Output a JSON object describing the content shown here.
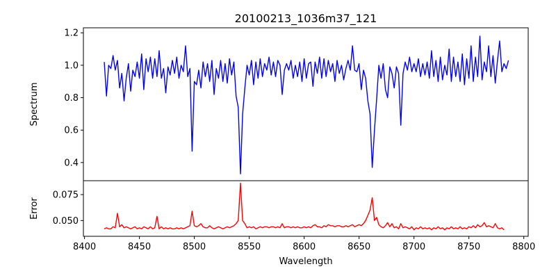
{
  "chart_data": [
    {
      "type": "line",
      "title": "20100213_1036m37_121",
      "xlabel": "",
      "ylabel": "Spectrum",
      "xlim": [
        8399,
        8804
      ],
      "ylim": [
        0.288,
        1.231
      ],
      "yticks": [
        "0.4",
        "0.6",
        "0.8",
        "1.0",
        "1.2"
      ],
      "grid": false,
      "series": [
        {
          "name": "Spectrum",
          "color": "#0000ff",
          "x_start": 8418,
          "x_step": 2,
          "values": [
            1.02,
            0.81,
            1.0,
            0.98,
            1.06,
            0.97,
            1.03,
            0.86,
            0.95,
            0.78,
            0.92,
            1.01,
            0.84,
            0.97,
            0.93,
            1.02,
            0.92,
            1.07,
            0.85,
            1.04,
            0.96,
            1.05,
            0.92,
            1.04,
            0.93,
            1.09,
            0.92,
            0.98,
            0.83,
            0.99,
            0.94,
            1.03,
            0.95,
            1.05,
            0.92,
            1.0,
            0.96,
            1.12,
            0.93,
            0.98,
            0.47,
            0.9,
            0.88,
            0.97,
            0.86,
            1.02,
            0.93,
            1.01,
            0.9,
            1.03,
            0.82,
            0.98,
            0.92,
            1.03,
            0.9,
            1.01,
            0.89,
            1.04,
            0.94,
            1.02,
            0.81,
            0.74,
            0.33,
            0.7,
            0.86,
            1.0,
            0.94,
            1.03,
            0.88,
            1.02,
            0.92,
            1.04,
            0.93,
            1.01,
            0.97,
            1.05,
            0.94,
            1.02,
            0.93,
            1.03,
            1.0,
            0.82,
            0.97,
            1.01,
            0.97,
            1.03,
            0.92,
            1.0,
            0.93,
            1.02,
            0.9,
            1.04,
            0.92,
            1.01,
            1.02,
            0.87,
            1.02,
            0.95,
            1.05,
            0.92,
            1.04,
            0.93,
            1.03,
            0.96,
            1.01,
            0.9,
            1.03,
            0.95,
            1.0,
            0.91,
            0.98,
            1.03,
            0.97,
            1.12,
            0.97,
            0.96,
            1.01,
            0.85,
            0.97,
            0.92,
            0.78,
            0.7,
            0.37,
            0.6,
            0.79,
            1.0,
            0.92,
            1.01,
            0.85,
            0.8,
            0.99,
            0.95,
            0.86,
            0.99,
            0.95,
            0.63,
            0.95,
            1.02,
            0.97,
            1.05,
            0.96,
            1.01,
            0.96,
            1.04,
            0.93,
            1.01,
            0.94,
            1.02,
            0.92,
            1.09,
            0.93,
            1.03,
            0.9,
            1.05,
            0.91,
            1.0,
            0.94,
            1.1,
            0.9,
            1.05,
            0.93,
            1.02,
            0.9,
            1.07,
            0.88,
            1.04,
            0.92,
            1.12,
            0.9,
            1.05,
            0.93,
            1.18,
            0.91,
            1.02,
            0.96,
            1.12,
            0.93,
            1.06,
            0.89,
            1.03,
            1.15,
            0.96,
            1.01,
            0.98,
            1.03
          ]
        }
      ]
    },
    {
      "type": "line",
      "title": "",
      "xlabel": "Wavelength",
      "ylabel": "Error",
      "xlim": [
        8399,
        8804
      ],
      "ylim": [
        0.0348,
        0.0884
      ],
      "xticks": [
        "8400",
        "8450",
        "8500",
        "8550",
        "8600",
        "8650",
        "8700",
        "8750",
        "8800"
      ],
      "yticks": [
        "0.050",
        "0.075"
      ],
      "grid": false,
      "series": [
        {
          "name": "Error",
          "color": "#ff0000",
          "x_start": 8418,
          "x_step": 2,
          "values": [
            0.042,
            0.043,
            0.042,
            0.042,
            0.044,
            0.043,
            0.057,
            0.044,
            0.046,
            0.043,
            0.044,
            0.043,
            0.042,
            0.043,
            0.044,
            0.042,
            0.043,
            0.042,
            0.044,
            0.043,
            0.042,
            0.044,
            0.042,
            0.043,
            0.054,
            0.042,
            0.044,
            0.042,
            0.043,
            0.042,
            0.043,
            0.042,
            0.042,
            0.043,
            0.042,
            0.043,
            0.042,
            0.043,
            0.044,
            0.045,
            0.059,
            0.045,
            0.044,
            0.045,
            0.047,
            0.044,
            0.043,
            0.043,
            0.045,
            0.043,
            0.042,
            0.043,
            0.044,
            0.043,
            0.042,
            0.043,
            0.044,
            0.043,
            0.044,
            0.045,
            0.047,
            0.05,
            0.086,
            0.05,
            0.047,
            0.043,
            0.044,
            0.043,
            0.044,
            0.042,
            0.043,
            0.044,
            0.043,
            0.044,
            0.044,
            0.043,
            0.044,
            0.044,
            0.043,
            0.044,
            0.043,
            0.047,
            0.043,
            0.044,
            0.044,
            0.043,
            0.044,
            0.043,
            0.044,
            0.043,
            0.043,
            0.044,
            0.043,
            0.044,
            0.043,
            0.045,
            0.046,
            0.044,
            0.044,
            0.043,
            0.045,
            0.044,
            0.046,
            0.045,
            0.045,
            0.044,
            0.045,
            0.045,
            0.044,
            0.044,
            0.045,
            0.044,
            0.045,
            0.046,
            0.044,
            0.045,
            0.046,
            0.045,
            0.047,
            0.05,
            0.055,
            0.06,
            0.072,
            0.05,
            0.053,
            0.046,
            0.044,
            0.043,
            0.045,
            0.048,
            0.044,
            0.047,
            0.043,
            0.044,
            0.042,
            0.047,
            0.043,
            0.044,
            0.043,
            0.042,
            0.044,
            0.041,
            0.043,
            0.042,
            0.044,
            0.042,
            0.043,
            0.042,
            0.043,
            0.041,
            0.043,
            0.042,
            0.044,
            0.042,
            0.043,
            0.041,
            0.043,
            0.042,
            0.044,
            0.042,
            0.043,
            0.042,
            0.044,
            0.042,
            0.043,
            0.042,
            0.044,
            0.043,
            0.045,
            0.043,
            0.046,
            0.044,
            0.045,
            0.048,
            0.044,
            0.045,
            0.044,
            0.043,
            0.047,
            0.043,
            0.042,
            0.043,
            0.041
          ]
        }
      ]
    }
  ]
}
